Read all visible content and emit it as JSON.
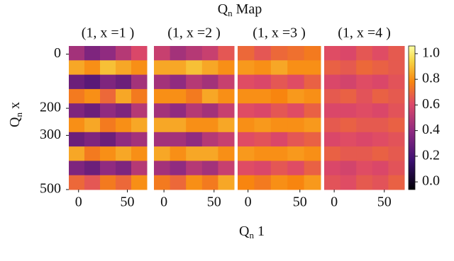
{
  "chart_data": {
    "type": "heatmap",
    "title": {
      "main": "Q",
      "sub": "n",
      "tail": "Map"
    },
    "xlabel": {
      "main": "Q",
      "sub": "n",
      "tail": "1"
    },
    "ylabel": {
      "main": "Q",
      "sub": "n",
      "tail": "x"
    },
    "colormap": "inferno",
    "xlim": [
      -10,
      70
    ],
    "xticks": [
      0,
      50
    ],
    "ylim": [
      -30,
      500
    ],
    "yticks": [
      0,
      200,
      300,
      500
    ],
    "clim": [
      -0.06,
      1.06
    ],
    "cticks": [
      {
        "value": 0,
        "label": "0.0"
      },
      {
        "value": 0.2,
        "label": "0.2"
      },
      {
        "value": 0.4,
        "label": "0.4"
      },
      {
        "value": 0.6,
        "label": "0.6"
      },
      {
        "value": 0.8,
        "label": "0.8"
      },
      {
        "value": 1,
        "label": "1.0"
      }
    ],
    "panels": [
      {
        "subtitle": "(1, x =1 )",
        "z": [
          [
            0.45,
            0.35,
            0.4,
            0.5,
            0.6
          ],
          [
            0.85,
            0.8,
            0.9,
            0.85,
            0.8
          ],
          [
            0.3,
            0.25,
            0.35,
            0.3,
            0.45
          ],
          [
            0.75,
            0.8,
            0.7,
            0.85,
            0.75
          ],
          [
            0.35,
            0.3,
            0.4,
            0.35,
            0.5
          ],
          [
            0.8,
            0.85,
            0.75,
            0.8,
            0.85
          ],
          [
            0.3,
            0.35,
            0.3,
            0.4,
            0.45
          ],
          [
            0.85,
            0.75,
            0.8,
            0.85,
            0.8
          ],
          [
            0.35,
            0.3,
            0.4,
            0.35,
            0.5
          ],
          [
            0.7,
            0.65,
            0.75,
            0.7,
            0.8
          ]
        ]
      },
      {
        "subtitle": "(1, x =2 )",
        "z": [
          [
            0.55,
            0.45,
            0.5,
            0.55,
            0.65
          ],
          [
            0.85,
            0.85,
            0.9,
            0.85,
            0.8
          ],
          [
            0.45,
            0.4,
            0.5,
            0.45,
            0.55
          ],
          [
            0.8,
            0.8,
            0.75,
            0.85,
            0.8
          ],
          [
            0.45,
            0.4,
            0.5,
            0.45,
            0.55
          ],
          [
            0.85,
            0.85,
            0.8,
            0.8,
            0.85
          ],
          [
            0.45,
            0.45,
            0.4,
            0.5,
            0.55
          ],
          [
            0.85,
            0.8,
            0.85,
            0.85,
            0.8
          ],
          [
            0.45,
            0.4,
            0.5,
            0.45,
            0.55
          ],
          [
            0.75,
            0.7,
            0.8,
            0.75,
            0.85
          ]
        ]
      },
      {
        "subtitle": "(1, x =3 )",
        "z": [
          [
            0.7,
            0.65,
            0.7,
            0.72,
            0.75
          ],
          [
            0.82,
            0.8,
            0.85,
            0.8,
            0.8
          ],
          [
            0.62,
            0.6,
            0.65,
            0.62,
            0.68
          ],
          [
            0.8,
            0.8,
            0.78,
            0.82,
            0.8
          ],
          [
            0.62,
            0.6,
            0.65,
            0.62,
            0.68
          ],
          [
            0.8,
            0.82,
            0.8,
            0.8,
            0.82
          ],
          [
            0.62,
            0.64,
            0.6,
            0.65,
            0.68
          ],
          [
            0.82,
            0.8,
            0.8,
            0.82,
            0.8
          ],
          [
            0.62,
            0.6,
            0.65,
            0.62,
            0.68
          ],
          [
            0.78,
            0.75,
            0.8,
            0.78,
            0.82
          ]
        ]
      },
      {
        "subtitle": "(1, x =4 )",
        "z": [
          [
            0.62,
            0.6,
            0.65,
            0.62,
            0.66
          ],
          [
            0.68,
            0.66,
            0.7,
            0.68,
            0.66
          ],
          [
            0.6,
            0.58,
            0.62,
            0.6,
            0.64
          ],
          [
            0.66,
            0.68,
            0.64,
            0.68,
            0.66
          ],
          [
            0.6,
            0.6,
            0.62,
            0.6,
            0.64
          ],
          [
            0.66,
            0.68,
            0.66,
            0.66,
            0.68
          ],
          [
            0.6,
            0.62,
            0.6,
            0.62,
            0.64
          ],
          [
            0.68,
            0.66,
            0.66,
            0.68,
            0.66
          ],
          [
            0.6,
            0.58,
            0.62,
            0.6,
            0.64
          ],
          [
            0.64,
            0.62,
            0.66,
            0.64,
            0.68
          ]
        ]
      }
    ]
  }
}
